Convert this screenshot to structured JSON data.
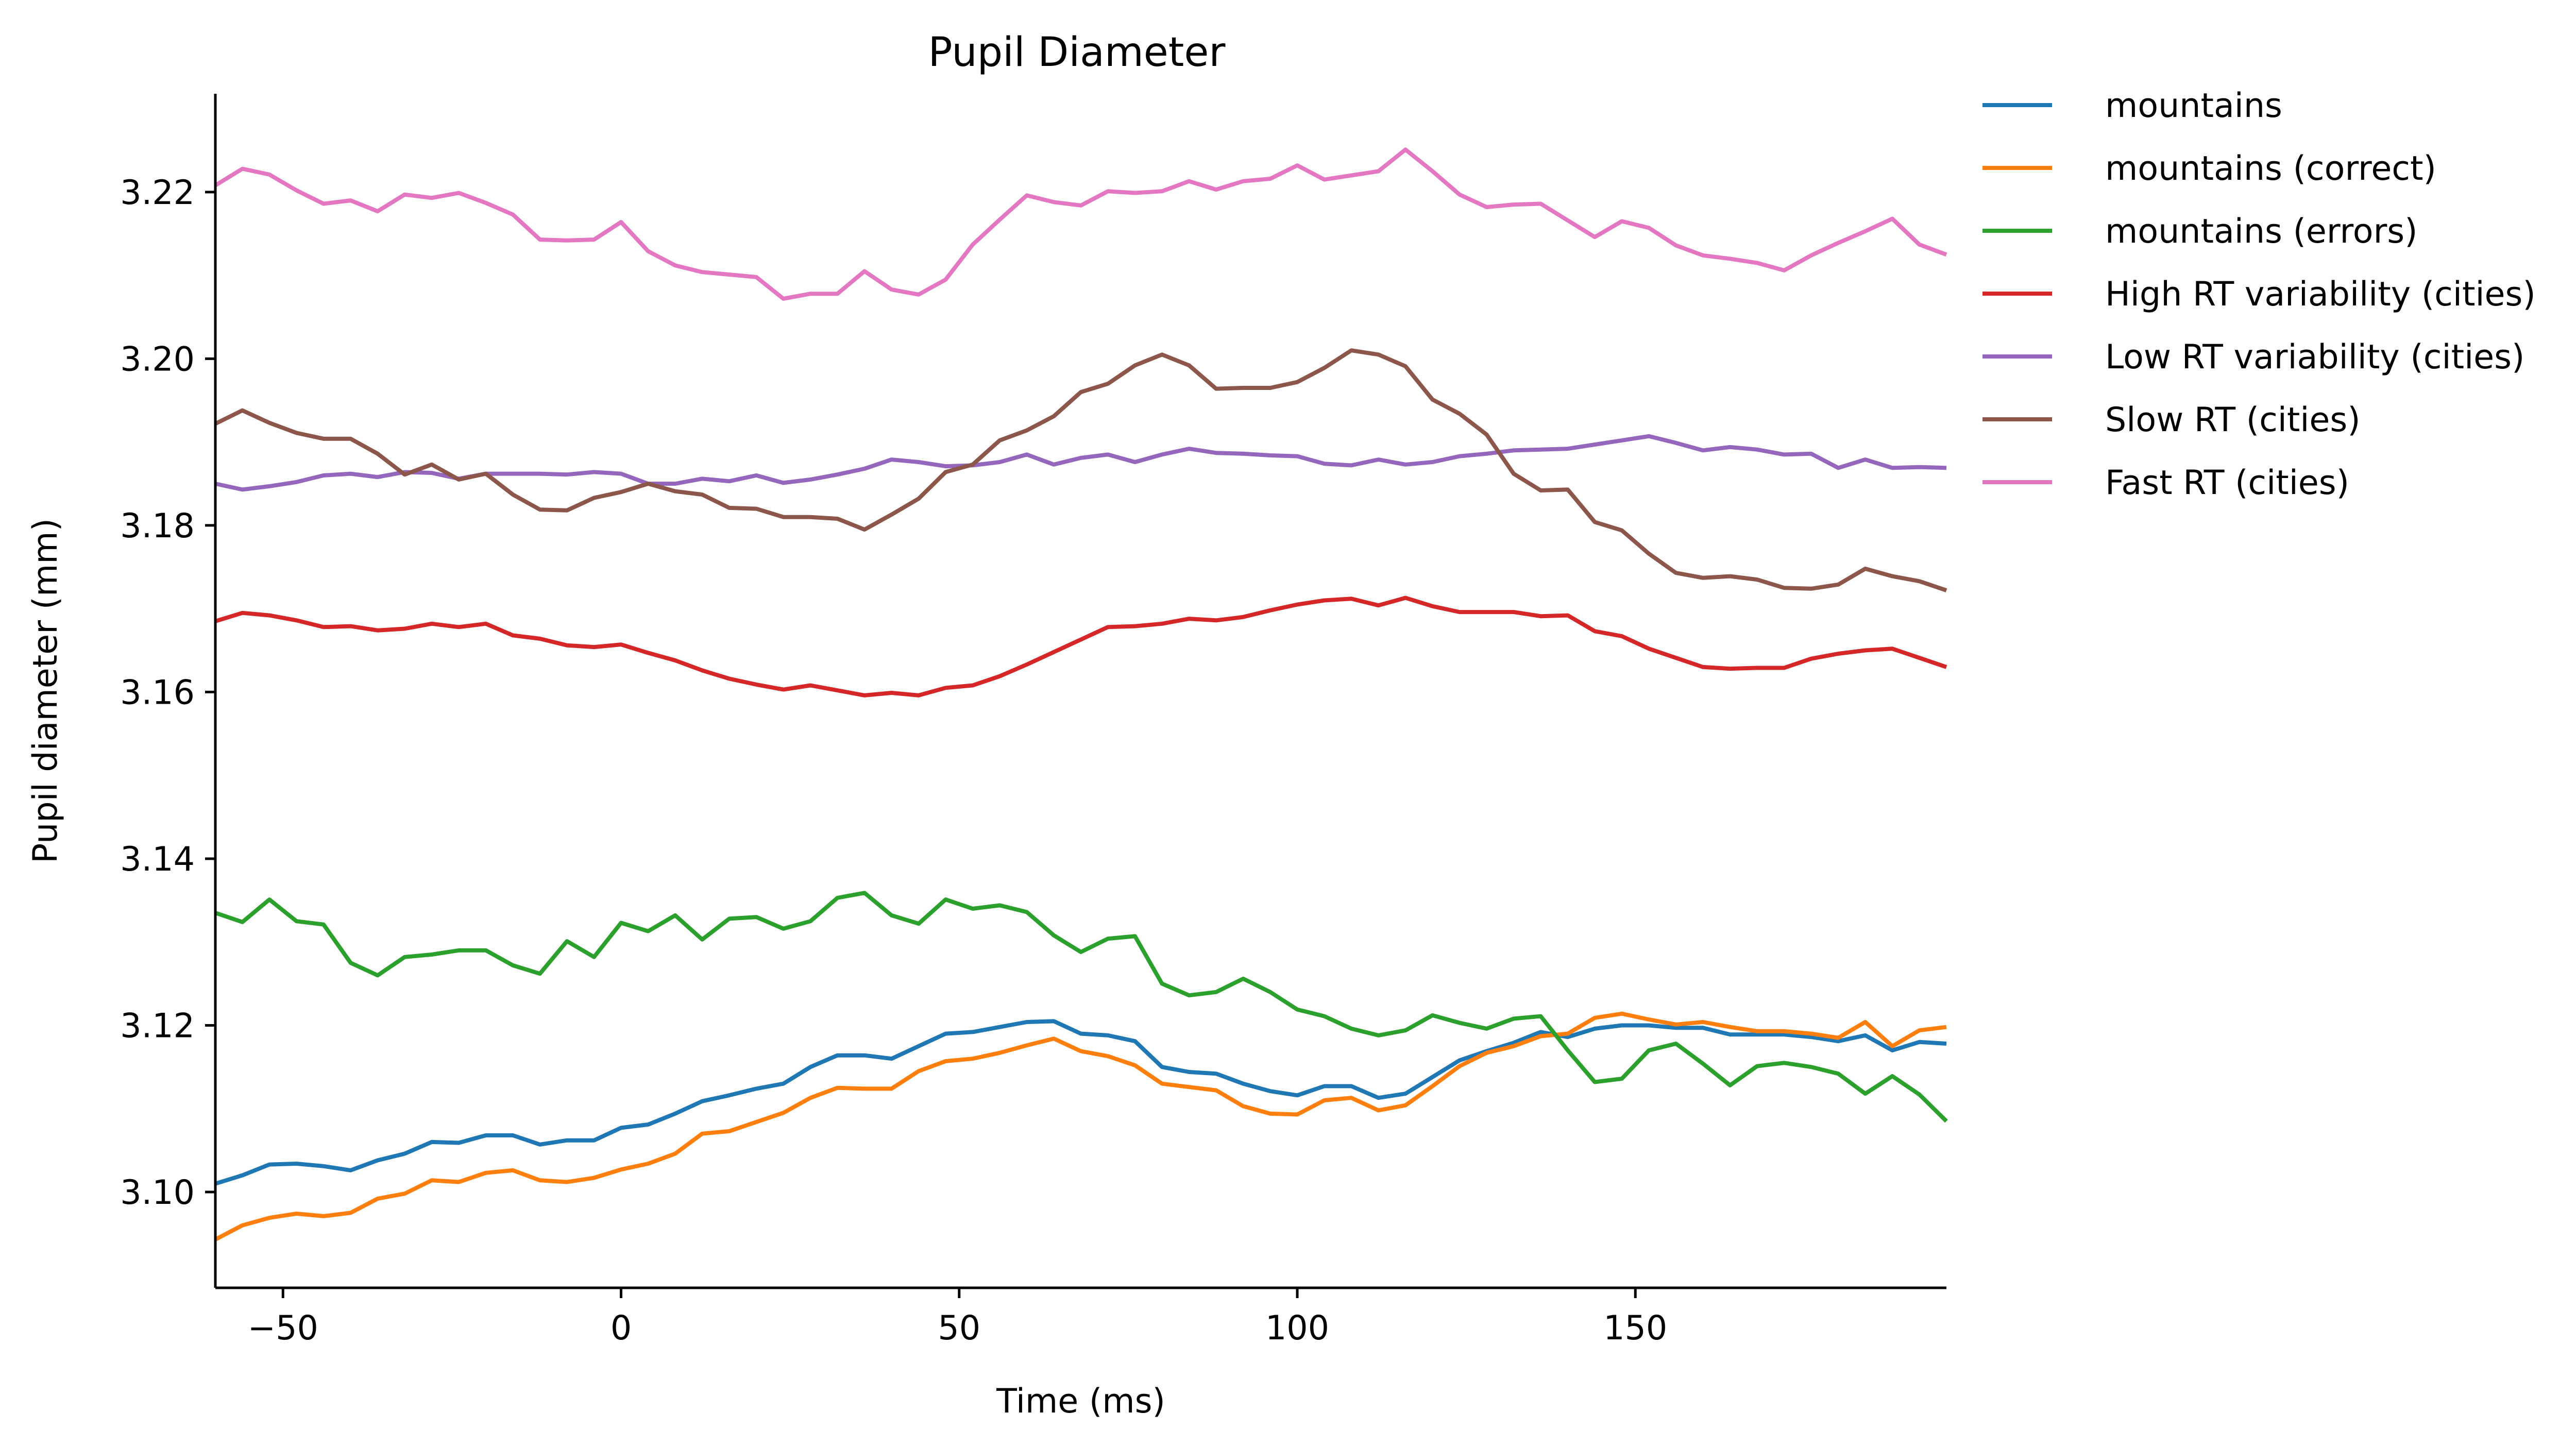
{
  "chart_data": {
    "type": "line",
    "title": "Pupil Diameter",
    "xlabel": "Time (ms)",
    "ylabel": "Pupil diameter (mm)",
    "xlim": [
      -60,
      196
    ],
    "ylim": [
      3.0885,
      3.2318
    ],
    "xticks": [
      -50,
      0,
      50,
      100,
      150
    ],
    "xtick_labels": [
      "−50",
      "0",
      "50",
      "100",
      "150"
    ],
    "yticks": [
      3.1,
      3.12,
      3.14,
      3.16,
      3.18,
      3.2,
      3.22
    ],
    "ytick_labels": [
      "3.10",
      "3.12",
      "3.14",
      "3.16",
      "3.18",
      "3.20",
      "3.22"
    ],
    "grid": false,
    "legend_position": "outside-right",
    "x": [
      -60,
      -56,
      -52,
      -48,
      -44,
      -40,
      -36,
      -32,
      -28,
      -24,
      -20,
      -16,
      -12,
      -8,
      -4,
      0,
      4,
      8,
      12,
      16,
      20,
      24,
      28,
      32,
      36,
      40,
      44,
      48,
      52,
      56,
      60,
      64,
      68,
      72,
      76,
      80,
      84,
      88,
      92,
      96,
      100,
      104,
      108,
      112,
      116,
      120,
      124,
      128,
      132,
      136,
      140,
      144,
      148,
      152,
      156,
      160,
      164,
      168,
      172,
      176,
      180,
      184,
      188,
      192,
      196
    ],
    "series": [
      {
        "name": "mountains",
        "color": "#1f77b4",
        "values": [
          3.101,
          3.102,
          3.1033,
          3.1034,
          3.1031,
          3.1026,
          3.1038,
          3.1046,
          3.106,
          3.1059,
          3.1068,
          3.1068,
          3.1057,
          3.1062,
          3.1062,
          3.1077,
          3.1081,
          3.1094,
          3.1109,
          3.1116,
          3.1124,
          3.113,
          3.115,
          3.1164,
          3.1164,
          3.116,
          3.1175,
          3.119,
          3.1192,
          3.1198,
          3.1204,
          3.1205,
          3.119,
          3.1188,
          3.1181,
          3.115,
          3.1144,
          3.1142,
          3.113,
          3.1121,
          3.1116,
          3.1127,
          3.1127,
          3.1113,
          3.1118,
          3.1138,
          3.1158,
          3.1169,
          3.1179,
          3.1192,
          3.1186,
          3.1196,
          3.12,
          3.12,
          3.1197,
          3.1197,
          3.1189,
          3.1189,
          3.1189,
          3.1186,
          3.1181,
          3.1188,
          3.117,
          3.118,
          3.1178
        ]
      },
      {
        "name": "mountains (correct)",
        "color": "#ff7f0e",
        "values": [
          3.0943,
          3.096,
          3.0969,
          3.0974,
          3.0971,
          3.0975,
          3.0992,
          3.0998,
          3.1014,
          3.1012,
          3.1023,
          3.1026,
          3.1014,
          3.1012,
          3.1017,
          3.1027,
          3.1034,
          3.1046,
          3.107,
          3.1073,
          3.1084,
          3.1095,
          3.1113,
          3.1125,
          3.1124,
          3.1124,
          3.1145,
          3.1157,
          3.116,
          3.1167,
          3.1176,
          3.1184,
          3.1169,
          3.1163,
          3.1152,
          3.113,
          3.1126,
          3.1122,
          3.1103,
          3.1094,
          3.1093,
          3.111,
          3.1113,
          3.1098,
          3.1104,
          3.1127,
          3.1151,
          3.1167,
          3.1175,
          3.1187,
          3.119,
          3.1209,
          3.1214,
          3.1207,
          3.1201,
          3.1204,
          3.1198,
          3.1193,
          3.1193,
          3.119,
          3.1185,
          3.1204,
          3.1175,
          3.1194,
          3.1198
        ]
      },
      {
        "name": "mountains (errors)",
        "color": "#2ca02c",
        "values": [
          3.1335,
          3.1324,
          3.1351,
          3.1325,
          3.1321,
          3.1275,
          3.126,
          3.1282,
          3.1285,
          3.129,
          3.129,
          3.1272,
          3.1262,
          3.1301,
          3.1282,
          3.1323,
          3.1313,
          3.1332,
          3.1303,
          3.1328,
          3.133,
          3.1316,
          3.1325,
          3.1353,
          3.1359,
          3.1332,
          3.1322,
          3.1351,
          3.134,
          3.1344,
          3.1336,
          3.1308,
          3.1288,
          3.1304,
          3.1307,
          3.125,
          3.1236,
          3.124,
          3.1256,
          3.124,
          3.1219,
          3.1211,
          3.1196,
          3.1188,
          3.1194,
          3.1212,
          3.1203,
          3.1196,
          3.1208,
          3.1211,
          3.117,
          3.1132,
          3.1136,
          3.117,
          3.1178,
          3.1154,
          3.1128,
          3.1151,
          3.1155,
          3.115,
          3.1142,
          3.1118,
          3.1139,
          3.1117,
          3.1085
        ]
      },
      {
        "name": "High RT variability (cities)",
        "color": "#d62728",
        "values": [
          3.1685,
          3.1695,
          3.1692,
          3.1686,
          3.1678,
          3.1679,
          3.1674,
          3.1676,
          3.1682,
          3.1678,
          3.1682,
          3.1668,
          3.1664,
          3.1656,
          3.1654,
          3.1657,
          3.1647,
          3.1638,
          3.1626,
          3.1616,
          3.1609,
          3.1603,
          3.1608,
          3.1602,
          3.1596,
          3.1599,
          3.1596,
          3.1605,
          3.1608,
          3.1619,
          3.1633,
          3.1648,
          3.1663,
          3.1678,
          3.1679,
          3.1682,
          3.1688,
          3.1686,
          3.169,
          3.1698,
          3.1705,
          3.171,
          3.1712,
          3.1704,
          3.1713,
          3.1703,
          3.1696,
          3.1696,
          3.1696,
          3.1691,
          3.1692,
          3.1673,
          3.1667,
          3.1652,
          3.1641,
          3.163,
          3.1628,
          3.1629,
          3.1629,
          3.164,
          3.1646,
          3.165,
          3.1652,
          3.1641,
          3.163
        ]
      },
      {
        "name": "Low RT variability (cities)",
        "color": "#9467bd",
        "values": [
          3.185,
          3.1843,
          3.1847,
          3.1852,
          3.186,
          3.1862,
          3.1858,
          3.1864,
          3.1863,
          3.1856,
          3.1862,
          3.1862,
          3.1862,
          3.1861,
          3.1864,
          3.1862,
          3.185,
          3.185,
          3.1856,
          3.1853,
          3.186,
          3.1851,
          3.1855,
          3.1861,
          3.1868,
          3.1879,
          3.1876,
          3.1871,
          3.1872,
          3.1876,
          3.1885,
          3.1873,
          3.1881,
          3.1885,
          3.1876,
          3.1885,
          3.1892,
          3.1887,
          3.1886,
          3.1884,
          3.1883,
          3.1874,
          3.1872,
          3.1879,
          3.1873,
          3.1876,
          3.1883,
          3.1886,
          3.189,
          3.1891,
          3.1892,
          3.1897,
          3.1902,
          3.1907,
          3.1899,
          3.189,
          3.1894,
          3.1891,
          3.1885,
          3.1886,
          3.1869,
          3.1879,
          3.1869,
          3.187,
          3.1869
        ]
      },
      {
        "name": "Slow RT (cities)",
        "color": "#8c564b",
        "values": [
          3.1922,
          3.1938,
          3.1923,
          3.1911,
          3.1904,
          3.1904,
          3.1886,
          3.1861,
          3.1873,
          3.1855,
          3.1862,
          3.1837,
          3.1819,
          3.1818,
          3.1833,
          3.184,
          3.185,
          3.1841,
          3.1837,
          3.1821,
          3.182,
          3.181,
          3.181,
          3.1808,
          3.1795,
          3.1813,
          3.1832,
          3.1864,
          3.1873,
          3.1902,
          3.1914,
          3.1931,
          3.196,
          3.197,
          3.1992,
          3.2005,
          3.1992,
          3.1964,
          3.1965,
          3.1965,
          3.1972,
          3.1989,
          3.201,
          3.2005,
          3.1991,
          3.1951,
          3.1934,
          3.1909,
          3.1862,
          3.1842,
          3.1843,
          3.1804,
          3.1794,
          3.1766,
          3.1743,
          3.1737,
          3.1739,
          3.1735,
          3.1725,
          3.1724,
          3.1729,
          3.1748,
          3.1739,
          3.1733,
          3.1722
        ]
      },
      {
        "name": "Fast RT (cities)",
        "color": "#e377c2",
        "values": [
          3.2208,
          3.2228,
          3.2221,
          3.2202,
          3.2186,
          3.219,
          3.2177,
          3.2197,
          3.2193,
          3.2199,
          3.2187,
          3.2173,
          3.2143,
          3.2142,
          3.2143,
          3.2164,
          3.2129,
          3.2112,
          3.2104,
          3.2101,
          3.2098,
          3.2072,
          3.2078,
          3.2078,
          3.2105,
          3.2083,
          3.2077,
          3.2095,
          3.2137,
          3.2167,
          3.2196,
          3.2188,
          3.2184,
          3.2201,
          3.2199,
          3.2201,
          3.2213,
          3.2203,
          3.2213,
          3.2216,
          3.2232,
          3.2215,
          3.222,
          3.2225,
          3.2251,
          3.2225,
          3.2197,
          3.2182,
          3.2185,
          3.2186,
          3.2166,
          3.2146,
          3.2165,
          3.2157,
          3.2136,
          3.2124,
          3.212,
          3.2115,
          3.2106,
          3.2124,
          3.2139,
          3.2153,
          3.2168,
          3.2137,
          3.2125
        ]
      }
    ]
  }
}
